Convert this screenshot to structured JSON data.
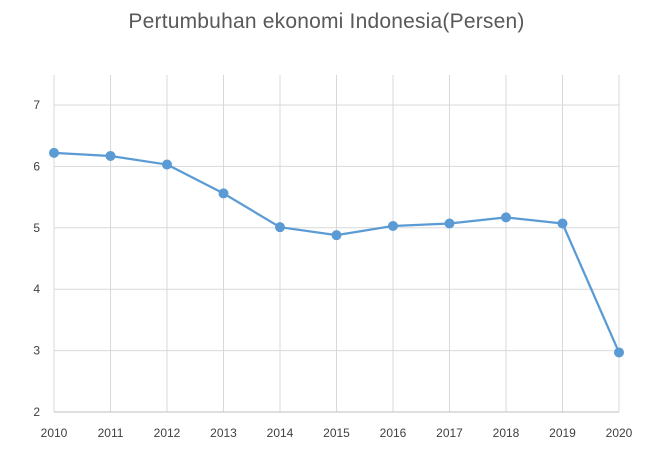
{
  "chart_data": {
    "type": "line",
    "title": "Pertumbuhan ekonomi Indonesia(Persen)",
    "xlabel": "",
    "ylabel": "",
    "x": [
      "2010",
      "2011",
      "2012",
      "2013",
      "2014",
      "2015",
      "2016",
      "2017",
      "2018",
      "2019",
      "2020"
    ],
    "series": [
      {
        "values": [
          6.22,
          6.17,
          6.03,
          5.56,
          5.01,
          4.88,
          5.03,
          5.07,
          5.17,
          5.07,
          2.97
        ],
        "color": "#5b9bd5"
      }
    ],
    "ylim": [
      2,
      7
    ],
    "yticks": [
      2,
      3,
      4,
      5,
      6,
      7
    ],
    "grid": true,
    "legend": "none"
  }
}
